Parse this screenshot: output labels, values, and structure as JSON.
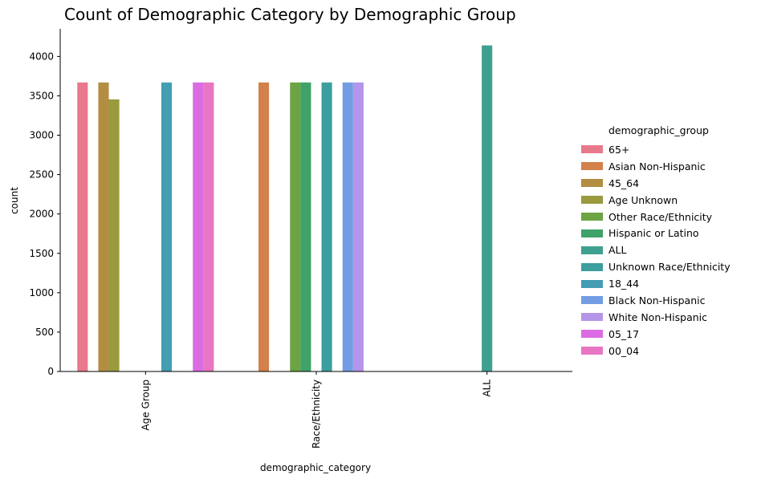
{
  "chart_data": {
    "type": "bar",
    "title": "Count of Demographic Category by Demographic Group",
    "xlabel": "demographic_category",
    "ylabel": "count",
    "categories": [
      "Age Group",
      "Race/Ethnicity",
      "ALL"
    ],
    "ylim": [
      0,
      4350
    ],
    "yticks": [
      0,
      500,
      1000,
      1500,
      2000,
      2500,
      3000,
      3500,
      4000
    ],
    "legend_title": "demographic_group",
    "legend_position": "right",
    "grid": false,
    "series": [
      {
        "name": "65+",
        "color": "#e8788b",
        "values": [
          3670,
          null,
          null
        ]
      },
      {
        "name": "Asian Non-Hispanic",
        "color": "#d3804a",
        "values": [
          null,
          3670,
          null
        ]
      },
      {
        "name": "45_64",
        "color": "#b38d42",
        "values": [
          3670,
          null,
          null
        ]
      },
      {
        "name": "Age Unknown",
        "color": "#999a3e",
        "values": [
          3455,
          null,
          null
        ]
      },
      {
        "name": "Other Race/Ethnicity",
        "color": "#6da343",
        "values": [
          null,
          3670,
          null
        ]
      },
      {
        "name": "Hispanic or Latino",
        "color": "#3ea269",
        "values": [
          null,
          3670,
          null
        ]
      },
      {
        "name": "ALL",
        "color": "#40a08f",
        "values": [
          null,
          null,
          4140
        ]
      },
      {
        "name": "Unknown Race/Ethnicity",
        "color": "#3d9e9e",
        "values": [
          null,
          3670,
          null
        ]
      },
      {
        "name": "18_44",
        "color": "#439db3",
        "values": [
          3670,
          null,
          null
        ]
      },
      {
        "name": "Black Non-Hispanic",
        "color": "#729de3",
        "values": [
          null,
          3670,
          null
        ]
      },
      {
        "name": "White Non-Hispanic",
        "color": "#b495e9",
        "values": [
          null,
          3670,
          null
        ]
      },
      {
        "name": "05_17",
        "color": "#db6be3",
        "values": [
          3670,
          null,
          null
        ]
      },
      {
        "name": "00_04",
        "color": "#e876c2",
        "values": [
          3670,
          null,
          null
        ]
      }
    ]
  }
}
